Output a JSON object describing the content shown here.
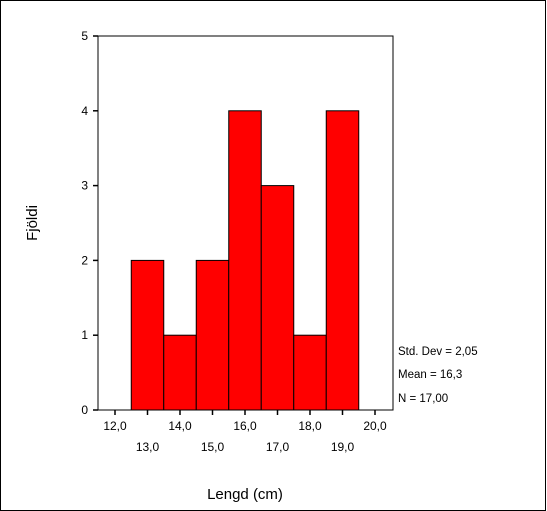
{
  "chart_data": {
    "type": "bar",
    "subtype": "histogram",
    "bin_width": 1.0,
    "bins": [
      {
        "center": 13.0,
        "count": 2
      },
      {
        "center": 14.0,
        "count": 1
      },
      {
        "center": 15.0,
        "count": 2
      },
      {
        "center": 16.0,
        "count": 4
      },
      {
        "center": 17.0,
        "count": 3
      },
      {
        "center": 18.0,
        "count": 1
      },
      {
        "center": 19.0,
        "count": 4
      }
    ],
    "xlabel": "Lengd (cm)",
    "ylabel": "Fjöldi",
    "xlim": [
      11.5,
      20.5
    ],
    "ylim": [
      0,
      5
    ],
    "x_ticks_upper": [
      "12,0",
      "14,0",
      "16,0",
      "18,0",
      "20,0"
    ],
    "x_ticks_lower": [
      "13,0",
      "15,0",
      "17,0",
      "19,0"
    ],
    "y_ticks": [
      "0",
      "1",
      "2",
      "3",
      "4",
      "5"
    ],
    "grid": false,
    "bar_color": "#ff0000",
    "stats": {
      "std_dev": "Std. Dev = 2,05",
      "mean": "Mean = 16,3",
      "n": "N = 17,00"
    }
  }
}
